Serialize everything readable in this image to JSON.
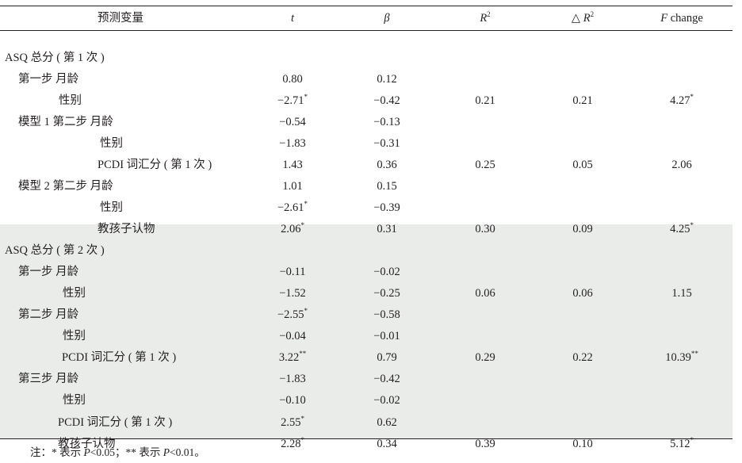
{
  "header": {
    "var": "预测变量",
    "t": "t",
    "beta": "β",
    "r2_base": "R",
    "r2_sup": "2",
    "dr2_prefix": "△ ",
    "dr2_base": "R",
    "dr2_sup": "2",
    "f_italic": "F",
    "f_rest": " change"
  },
  "rows": [
    {
      "label": "ASQ 总分 ( 第 1 次 )",
      "indent": 6,
      "t": "",
      "ts": "",
      "beta": "",
      "r2": "",
      "dr2": "",
      "f": "",
      "fs": ""
    },
    {
      "label": "第一步 月龄",
      "indent": 23,
      "t": "0.80",
      "ts": "",
      "beta": "0.12",
      "r2": "",
      "dr2": "",
      "f": "",
      "fs": ""
    },
    {
      "label": "性别",
      "indent": 74,
      "t": "−2.71",
      "ts": "*",
      "beta": "−0.42",
      "r2": "0.21",
      "dr2": "0.21",
      "f": "4.27",
      "fs": "*"
    },
    {
      "label": "模型 1 第二步 月龄",
      "indent": 23,
      "t": "−0.54",
      "ts": "",
      "beta": "−0.13",
      "r2": "",
      "dr2": "",
      "f": "",
      "fs": ""
    },
    {
      "label": "性别",
      "indent": 126,
      "t": "−1.83",
      "ts": "",
      "beta": "−0.31",
      "r2": "",
      "dr2": "",
      "f": "",
      "fs": ""
    },
    {
      "label": "PCDI 词汇分 ( 第 1 次 )",
      "indent": 123,
      "t": "1.43",
      "ts": "",
      "beta": "0.36",
      "r2": "0.25",
      "dr2": "0.05",
      "f": "2.06",
      "fs": ""
    },
    {
      "label": "模型 2 第二步 月龄",
      "indent": 23,
      "t": "1.01",
      "ts": "",
      "beta": "0.15",
      "r2": "",
      "dr2": "",
      "f": "",
      "fs": ""
    },
    {
      "label": "性别",
      "indent": 126,
      "t": "−2.61",
      "ts": "*",
      "beta": "−0.39",
      "r2": "",
      "dr2": "",
      "f": "",
      "fs": ""
    },
    {
      "label": "教孩子认物",
      "indent": 123,
      "t": "2.06",
      "ts": "*",
      "beta": "0.31",
      "r2": "0.30",
      "dr2": "0.09",
      "f": "4.25",
      "fs": "*"
    },
    {
      "label": "ASQ 总分 ( 第 2 次 )",
      "indent": 6,
      "t": "",
      "ts": "",
      "beta": "",
      "r2": "",
      "dr2": "",
      "f": "",
      "fs": ""
    },
    {
      "label": "第一步  月龄",
      "indent": 23,
      "t": "−0.11",
      "ts": "",
      "beta": "−0.02",
      "r2": "",
      "dr2": "",
      "f": "",
      "fs": ""
    },
    {
      "label": "性别",
      "indent": 79,
      "t": "−1.52",
      "ts": "",
      "beta": "−0.25",
      "r2": "0.06",
      "dr2": "0.06",
      "f": "1.15",
      "fs": ""
    },
    {
      "label": "第二步  月龄",
      "indent": 23,
      "t": "−2.55",
      "ts": "*",
      "beta": "−0.58",
      "r2": "",
      "dr2": "",
      "f": "",
      "fs": ""
    },
    {
      "label": "性别",
      "indent": 79,
      "t": "−0.04",
      "ts": "",
      "beta": "−0.01",
      "r2": "",
      "dr2": "",
      "f": "",
      "fs": ""
    },
    {
      "label": "PCDI 词汇分 ( 第 1 次 )",
      "indent": 78,
      "t": "3.22",
      "ts": "**",
      "beta": "0.79",
      "r2": "0.29",
      "dr2": "0.22",
      "f": "10.39",
      "fs": "**"
    },
    {
      "label": "第三步  月龄",
      "indent": 23,
      "t": "−1.83",
      "ts": "",
      "beta": "−0.42",
      "r2": "",
      "dr2": "",
      "f": "",
      "fs": ""
    },
    {
      "label": "性别",
      "indent": 79,
      "t": "−0.10",
      "ts": "",
      "beta": "−0.02",
      "r2": "",
      "dr2": "",
      "f": "",
      "fs": ""
    },
    {
      "label": "PCDI 词汇分 ( 第 1 次 )",
      "indent": 73,
      "t": "2.55",
      "ts": "*",
      "beta": "0.62",
      "r2": "",
      "dr2": "",
      "f": "",
      "fs": ""
    },
    {
      "label": "教孩子认物",
      "indent": 73,
      "t": "2.28",
      "ts": "*",
      "beta": "0.34",
      "r2": "0.39",
      "dr2": "0.10",
      "f": "5.12",
      "fs": "*"
    }
  ],
  "note": {
    "prefix": "注：* 表示 ",
    "p1": "P",
    "mid": "<0.05；** 表示 ",
    "p2": "P",
    "end": "<0.01。"
  }
}
